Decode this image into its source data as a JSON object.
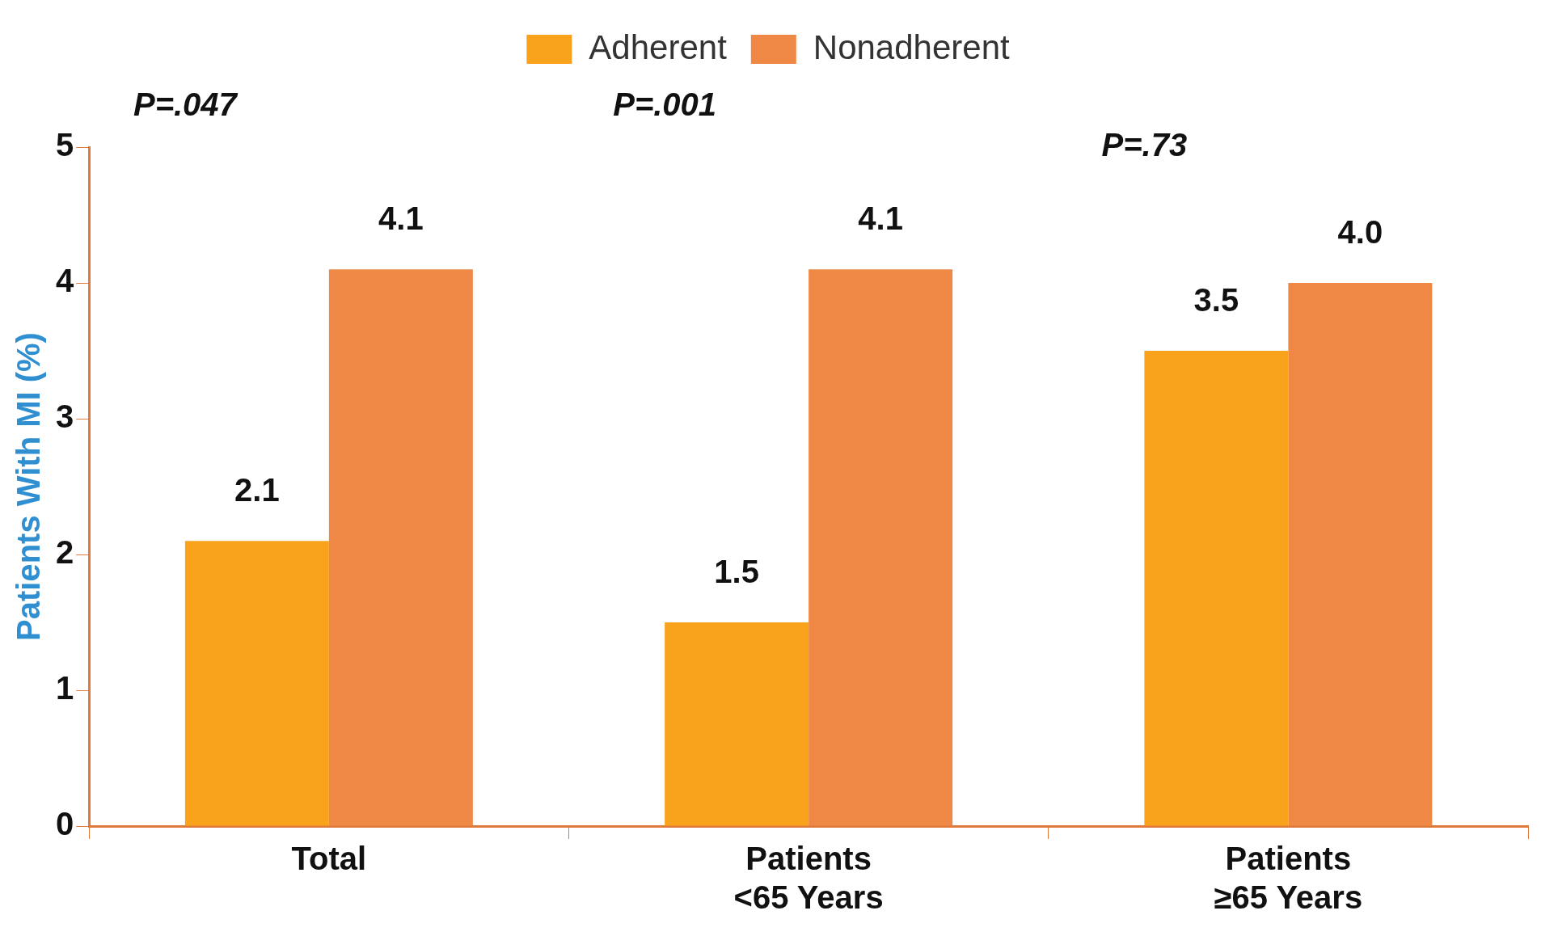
{
  "chart_data": {
    "type": "bar",
    "ylabel": "Patients With MI (%)",
    "categories": [
      "Total",
      "Patients\n<65 Years",
      "Patients\n≥65 Years"
    ],
    "series": [
      {
        "name": "Adherent",
        "color": "#f9a31c",
        "values": [
          2.1,
          1.5,
          3.5
        ],
        "value_labels": [
          "2.1",
          "1.5",
          "3.5"
        ]
      },
      {
        "name": "Nonadherent",
        "color": "#ee8844",
        "values": [
          4.1,
          4.1,
          4.0
        ],
        "value_labels": [
          "4.1",
          "4.1",
          "4.0"
        ]
      }
    ],
    "ylim": [
      0,
      5
    ],
    "yticks": [
      0,
      1,
      2,
      3,
      4,
      5
    ],
    "grid": false,
    "legend": "top",
    "annotations": [
      "P=.047",
      "P=.001",
      "P=.73"
    ]
  }
}
